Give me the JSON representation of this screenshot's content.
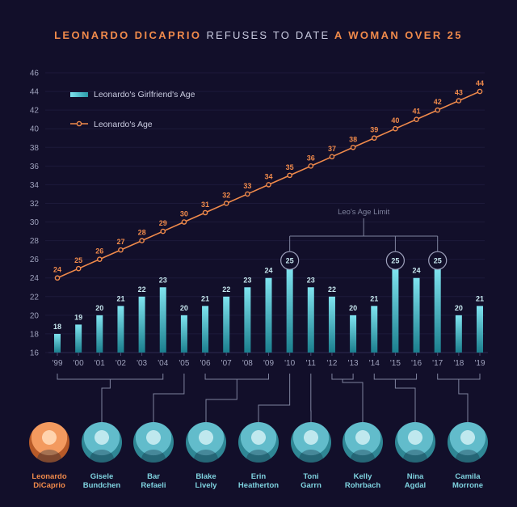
{
  "title": {
    "part1": "LEONARDO DICAPRIO",
    "part2": "REFUSES TO DATE",
    "part3": "A WOMAN OVER 25"
  },
  "colors": {
    "background": "#120f2a",
    "accent_orange": "#f08a4b",
    "accent_cyan": "#4fc0cf"
  },
  "chart_data": {
    "type": "bar",
    "title": "LEONARDO DICAPRIO REFUSES TO DATE A WOMAN OVER 25",
    "categories": [
      "'99",
      "'00",
      "'01",
      "'02",
      "'03",
      "'04",
      "'05",
      "'06",
      "'07",
      "'08",
      "'09",
      "'10",
      "'11",
      "'12",
      "'13",
      "'14",
      "'15",
      "'16",
      "'17",
      "'18",
      "'19"
    ],
    "series": [
      {
        "name": "Leonardo's Girlfriend's Age",
        "type": "bar",
        "values": [
          18,
          19,
          20,
          21,
          22,
          23,
          20,
          21,
          22,
          23,
          24,
          25,
          23,
          22,
          20,
          21,
          25,
          24,
          25,
          20,
          21
        ]
      },
      {
        "name": "Leonardo's Age",
        "type": "line",
        "values": [
          24,
          25,
          26,
          27,
          28,
          29,
          30,
          31,
          32,
          33,
          34,
          35,
          36,
          37,
          38,
          39,
          40,
          41,
          42,
          43,
          44
        ]
      }
    ],
    "yticks": [
      16,
      18,
      20,
      22,
      24,
      26,
      28,
      30,
      32,
      34,
      36,
      38,
      40,
      42,
      44,
      46
    ],
    "ylim": [
      16,
      46
    ],
    "highlighted_bar_indices": [
      11,
      16,
      18
    ],
    "annotation": "Leo's Age Limit",
    "legend_position": "top-left"
  },
  "people": [
    {
      "first": "Leonardo",
      "last": "DiCaprio",
      "is_leo": true
    },
    {
      "first": "Gisele",
      "last": "Bundchen"
    },
    {
      "first": "Bar",
      "last": "Refaeli"
    },
    {
      "first": "Blake",
      "last": "Lively"
    },
    {
      "first": "Erin",
      "last": "Heatherton"
    },
    {
      "first": "Toni",
      "last": "Garrn"
    },
    {
      "first": "Kelly",
      "last": "Rohrbach"
    },
    {
      "first": "Nina",
      "last": "Agdal"
    },
    {
      "first": "Camila",
      "last": "Morrone"
    }
  ]
}
